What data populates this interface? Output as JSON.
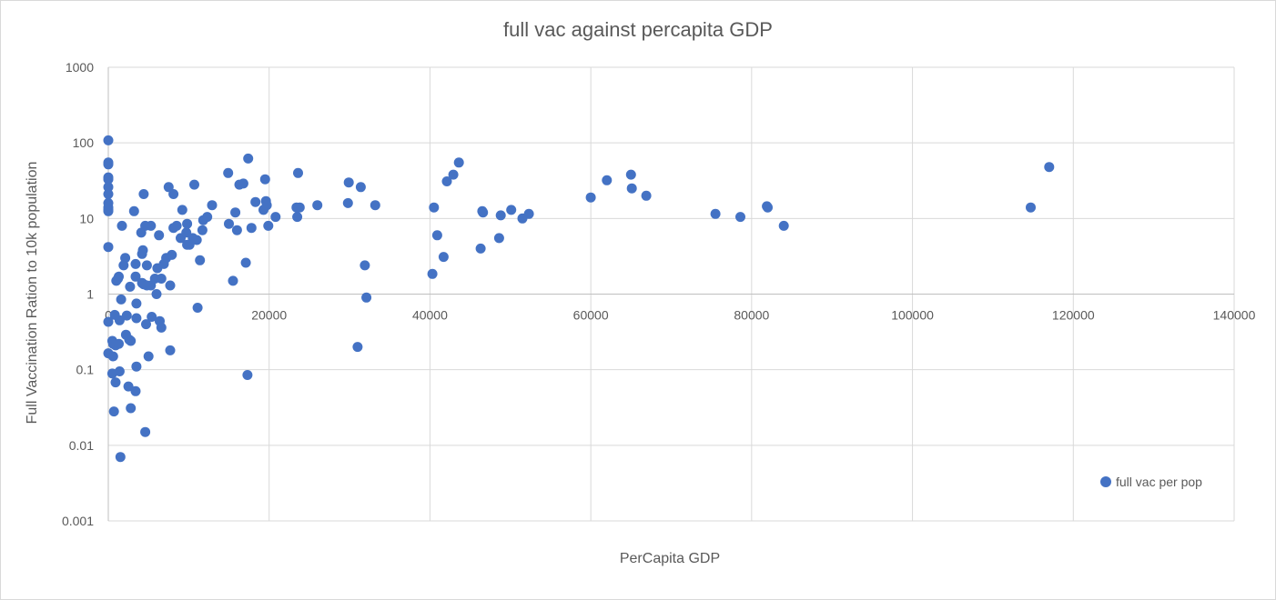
{
  "chart_data": {
    "type": "scatter",
    "title": "full vac against percapita GDP",
    "xlabel": "PerCapita GDP",
    "ylabel": "Full Vaccination Ration to 10k population",
    "xlim": [
      0,
      140000
    ],
    "ylim": [
      0.001,
      1000
    ],
    "y_scale": "log",
    "grid": true,
    "legend_position": "right",
    "x_ticks": [
      "0",
      "20000",
      "40000",
      "60000",
      "80000",
      "100000",
      "120000",
      "140000"
    ],
    "y_ticks": [
      "1000",
      "100",
      "10",
      "1",
      "0.1",
      "0.01",
      "0.001"
    ],
    "marker_color": "#4472c4",
    "series": [
      {
        "name": "full vac per pop",
        "points": [
          [
            0,
            108
          ],
          [
            0,
            55
          ],
          [
            0,
            52
          ],
          [
            0,
            35
          ],
          [
            0,
            33
          ],
          [
            0,
            26
          ],
          [
            0,
            21
          ],
          [
            0,
            16
          ],
          [
            0,
            14
          ],
          [
            0,
            13
          ],
          [
            0,
            12.5
          ],
          [
            0,
            4.2
          ],
          [
            0,
            0.43
          ],
          [
            0,
            0.165
          ],
          [
            500,
            0.24
          ],
          [
            600,
            0.22
          ],
          [
            500,
            0.089
          ],
          [
            600,
            0.15
          ],
          [
            700,
            0.028
          ],
          [
            800,
            0.53
          ],
          [
            900,
            0.068
          ],
          [
            900,
            0.21
          ],
          [
            1000,
            1.5
          ],
          [
            1200,
            1.6
          ],
          [
            1300,
            1.7
          ],
          [
            1400,
            0.45
          ],
          [
            1300,
            0.22
          ],
          [
            1400,
            0.095
          ],
          [
            1500,
            0.007
          ],
          [
            1700,
            8
          ],
          [
            1600,
            0.85
          ],
          [
            1900,
            2.4
          ],
          [
            2100,
            3
          ],
          [
            2300,
            0.52
          ],
          [
            2200,
            0.29
          ],
          [
            2600,
            0.25
          ],
          [
            2800,
            0.24
          ],
          [
            2500,
            0.06
          ],
          [
            2800,
            0.031
          ],
          [
            2700,
            1.25
          ],
          [
            3200,
            12.5
          ],
          [
            3400,
            2.5
          ],
          [
            3400,
            1.7
          ],
          [
            3500,
            0.75
          ],
          [
            3500,
            0.48
          ],
          [
            3500,
            0.11
          ],
          [
            3400,
            0.052
          ],
          [
            4100,
            6.5
          ],
          [
            4200,
            3.4
          ],
          [
            4300,
            3.8
          ],
          [
            4400,
            21
          ],
          [
            4200,
            1.4
          ],
          [
            4400,
            1.35
          ],
          [
            4600,
            8
          ],
          [
            4700,
            0.4
          ],
          [
            4800,
            1.3
          ],
          [
            4800,
            2.4
          ],
          [
            5000,
            0.15
          ],
          [
            4600,
            0.015
          ],
          [
            5300,
            8
          ],
          [
            5300,
            1.3
          ],
          [
            5400,
            0.5
          ],
          [
            5800,
            1.6
          ],
          [
            6000,
            1
          ],
          [
            6100,
            2.2
          ],
          [
            6300,
            6
          ],
          [
            6400,
            0.44
          ],
          [
            6600,
            0.36
          ],
          [
            6600,
            1.6
          ],
          [
            6900,
            2.5
          ],
          [
            7200,
            3
          ],
          [
            7500,
            26
          ],
          [
            7700,
            1.3
          ],
          [
            7700,
            0.18
          ],
          [
            7900,
            3.3
          ],
          [
            8100,
            7.5
          ],
          [
            8100,
            21
          ],
          [
            8500,
            8
          ],
          [
            9000,
            5.5
          ],
          [
            9200,
            13
          ],
          [
            9700,
            6.5
          ],
          [
            9800,
            8.5
          ],
          [
            9800,
            4.5
          ],
          [
            10100,
            4.5
          ],
          [
            10500,
            5.5
          ],
          [
            10700,
            28
          ],
          [
            11000,
            5.2
          ],
          [
            11100,
            0.66
          ],
          [
            11400,
            2.8
          ],
          [
            11700,
            7
          ],
          [
            11800,
            9.5
          ],
          [
            12300,
            10.5
          ],
          [
            12900,
            15
          ],
          [
            14900,
            40
          ],
          [
            15000,
            8.5
          ],
          [
            15500,
            1.5
          ],
          [
            15800,
            12
          ],
          [
            16000,
            7
          ],
          [
            16300,
            28
          ],
          [
            16800,
            29
          ],
          [
            17100,
            2.6
          ],
          [
            17400,
            62
          ],
          [
            17300,
            0.085
          ],
          [
            17800,
            7.5
          ],
          [
            18300,
            16.5
          ],
          [
            19300,
            13
          ],
          [
            19500,
            33
          ],
          [
            19600,
            17
          ],
          [
            19700,
            15
          ],
          [
            19900,
            8
          ],
          [
            20800,
            10.5
          ],
          [
            23400,
            14
          ],
          [
            23500,
            10.5
          ],
          [
            23600,
            40
          ],
          [
            23800,
            14
          ],
          [
            26000,
            15
          ],
          [
            29800,
            16
          ],
          [
            29900,
            30
          ],
          [
            31000,
            0.2
          ],
          [
            31400,
            26
          ],
          [
            31900,
            2.4
          ],
          [
            32100,
            0.9
          ],
          [
            33200,
            15
          ],
          [
            40300,
            1.85
          ],
          [
            40500,
            14
          ],
          [
            40900,
            6
          ],
          [
            41700,
            3.1
          ],
          [
            42100,
            31
          ],
          [
            42900,
            38
          ],
          [
            43600,
            55
          ],
          [
            46300,
            4
          ],
          [
            46500,
            12.5
          ],
          [
            46600,
            12
          ],
          [
            48600,
            5.5
          ],
          [
            48800,
            11
          ],
          [
            50100,
            13
          ],
          [
            51500,
            10
          ],
          [
            52300,
            11.5
          ],
          [
            60000,
            19
          ],
          [
            62000,
            32
          ],
          [
            65000,
            38
          ],
          [
            65100,
            25
          ],
          [
            66900,
            20
          ],
          [
            75500,
            11.5
          ],
          [
            78600,
            10.5
          ],
          [
            81900,
            14.5
          ],
          [
            82000,
            14
          ],
          [
            84000,
            8
          ],
          [
            114700,
            14
          ],
          [
            117000,
            48
          ]
        ]
      }
    ]
  }
}
